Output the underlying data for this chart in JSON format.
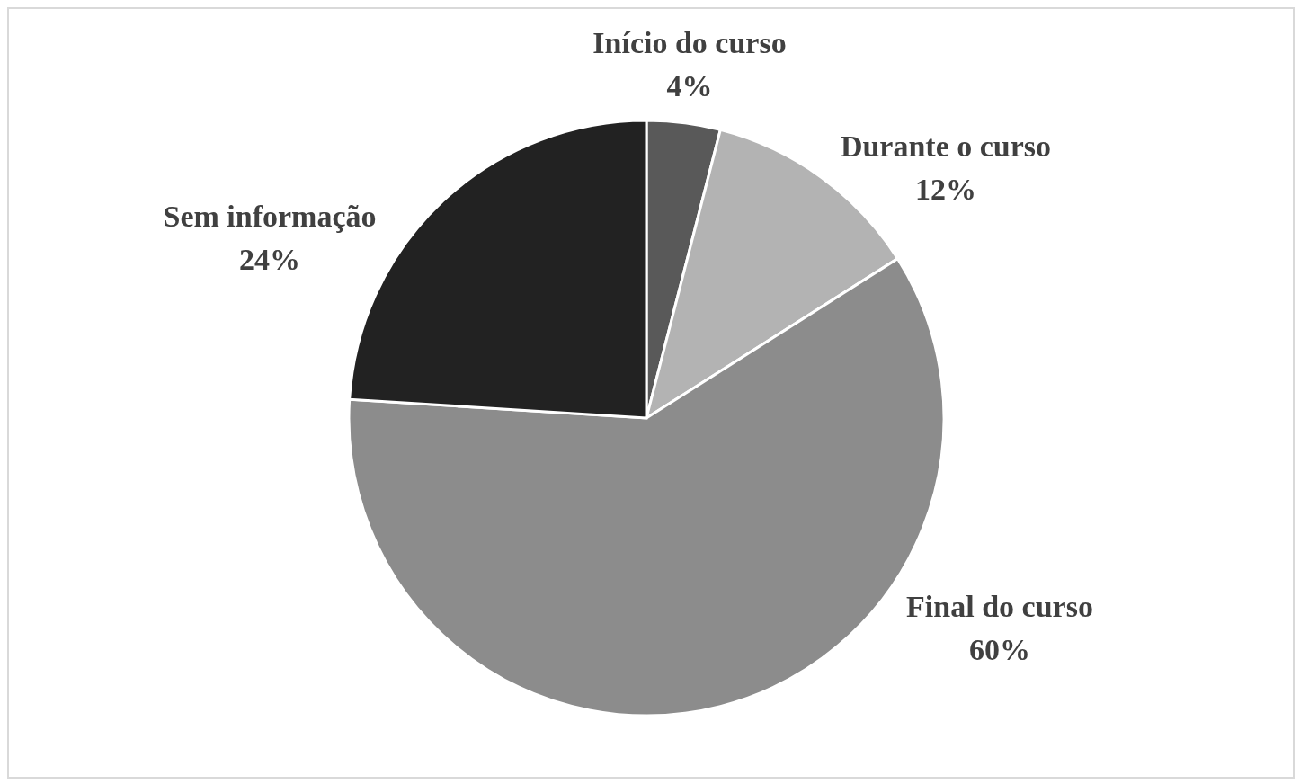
{
  "chart_data": {
    "type": "pie",
    "categories": [
      "Início do curso",
      "Durante o curso",
      "Final do curso",
      "Sem informação"
    ],
    "values": [
      4,
      12,
      60,
      24
    ],
    "value_labels": [
      "4%",
      "12%",
      "60%",
      "24%"
    ],
    "colors": [
      "#595959",
      "#b3b3b3",
      "#8c8c8c",
      "#222222"
    ],
    "legend": false
  }
}
